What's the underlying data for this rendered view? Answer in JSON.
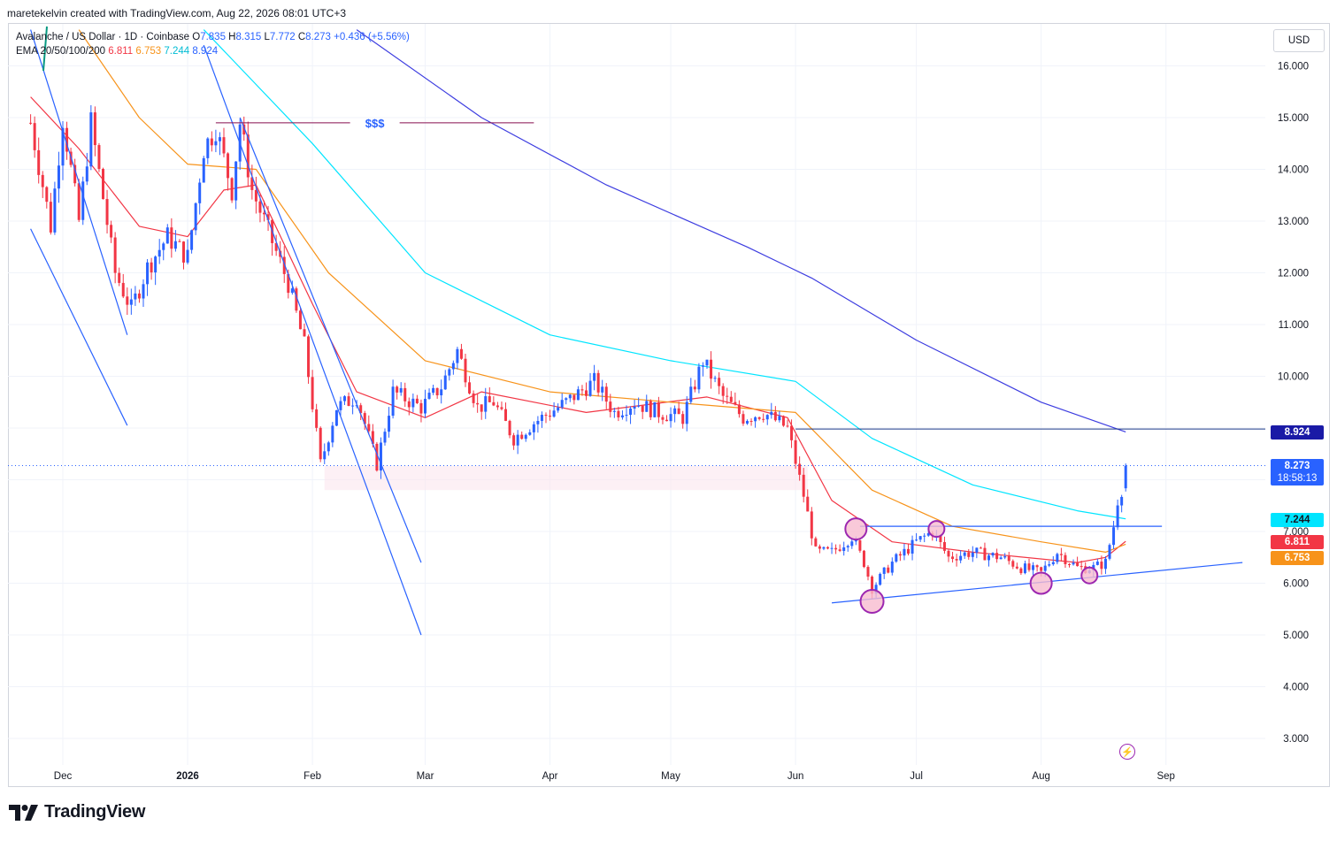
{
  "header": {
    "byline": "maretekelvin created with TradingView.com, Aug 22, 2026 08:01 UTC+3"
  },
  "legend": {
    "symbol": "Avalanche / US Dollar · 1D · Coinbase",
    "o_label": "O",
    "o": "7.835",
    "h_label": "H",
    "h": "8.315",
    "l_label": "L",
    "l": "7.772",
    "c_label": "C",
    "c": "8.273",
    "change": "+0.436 (+5.56%)",
    "ema_label": "EMA 20/50/100/200",
    "ema20": "6.811",
    "ema50": "6.753",
    "ema100": "7.244",
    "ema200": "8.924"
  },
  "currency": "USD",
  "price_tags": {
    "ema200": "8.924",
    "last": "8.273",
    "countdown": "18:58:13",
    "ema100": "7.244",
    "ema20": "6.811",
    "ema50": "6.753"
  },
  "annotation_text": "$$$",
  "footer": {
    "brand": "TradingView"
  },
  "colors": {
    "up": "#2962ff",
    "down": "#f23645",
    "ema20": "#f23645",
    "ema50": "#f7931a",
    "ema100": "#00e5ff",
    "ema200": "#3d3de0",
    "trendline": "#2962ff",
    "liquidity_line": "#880e4f",
    "circle_fill": "#f8bbd0",
    "circle_stroke": "#9c27b0"
  },
  "chart_data": {
    "type": "candlestick",
    "title": "Avalanche / US Dollar · 1D · Coinbase",
    "x_ticks": [
      "Dec",
      "2026",
      "Feb",
      "Mar",
      "Apr",
      "May",
      "Jun",
      "Jul",
      "Aug",
      "Sep"
    ],
    "y_ticks": [
      "3.000",
      "4.000",
      "5.000",
      "6.000",
      "7.000",
      "10.000",
      "11.000",
      "12.000",
      "13.000",
      "14.000",
      "15.000",
      "16.000"
    ],
    "y_range": [
      2.5,
      16.7
    ],
    "price_path": [
      [
        "2025-11-23",
        14.9
      ],
      [
        "2025-11-28",
        12.9
      ],
      [
        "2025-12-01",
        15.0
      ],
      [
        "2025-12-05",
        13.0
      ],
      [
        "2025-12-08",
        14.9
      ],
      [
        "2025-12-14",
        12.0
      ],
      [
        "2025-12-18",
        11.3
      ],
      [
        "2025-12-22",
        12.1
      ],
      [
        "2025-12-27",
        12.7
      ],
      [
        "2026-01-01",
        12.3
      ],
      [
        "2026-01-05",
        14.4
      ],
      [
        "2026-01-08",
        14.8
      ],
      [
        "2026-01-12",
        13.6
      ],
      [
        "2026-01-14",
        14.9
      ],
      [
        "2026-01-17",
        13.6
      ],
      [
        "2026-01-20",
        13.0
      ],
      [
        "2026-01-26",
        11.8
      ],
      [
        "2026-01-30",
        10.6
      ],
      [
        "2026-02-03",
        8.3
      ],
      [
        "2026-02-07",
        9.4
      ],
      [
        "2026-02-12",
        9.6
      ],
      [
        "2026-02-17",
        8.3
      ],
      [
        "2026-02-21",
        9.7
      ],
      [
        "2026-02-28",
        9.4
      ],
      [
        "2026-03-05",
        9.8
      ],
      [
        "2026-03-09",
        10.5
      ],
      [
        "2026-03-14",
        9.4
      ],
      [
        "2026-03-18",
        9.5
      ],
      [
        "2026-03-23",
        8.8
      ],
      [
        "2026-03-28",
        9.1
      ],
      [
        "2026-04-05",
        9.5
      ],
      [
        "2026-04-12",
        9.9
      ],
      [
        "2026-04-17",
        9.3
      ],
      [
        "2026-04-22",
        9.5
      ],
      [
        "2026-04-28",
        9.3
      ],
      [
        "2026-05-04",
        9.2
      ],
      [
        "2026-05-09",
        10.3
      ],
      [
        "2026-05-14",
        9.6
      ],
      [
        "2026-05-19",
        9.2
      ],
      [
        "2026-05-24",
        9.3
      ],
      [
        "2026-05-30",
        9.0
      ],
      [
        "2026-06-03",
        7.7
      ],
      [
        "2026-06-06",
        6.6
      ],
      [
        "2026-06-10",
        6.6
      ],
      [
        "2026-06-15",
        6.9
      ],
      [
        "2026-06-18",
        6.4
      ],
      [
        "2026-06-20",
        5.9
      ],
      [
        "2026-06-25",
        6.4
      ],
      [
        "2026-07-01",
        6.8
      ],
      [
        "2026-07-05",
        7.0
      ],
      [
        "2026-07-09",
        6.5
      ],
      [
        "2026-07-15",
        6.6
      ],
      [
        "2026-07-22",
        6.5
      ],
      [
        "2026-07-27",
        6.3
      ],
      [
        "2026-08-01",
        6.2
      ],
      [
        "2026-08-05",
        6.6
      ],
      [
        "2026-08-10",
        6.3
      ],
      [
        "2026-08-14",
        6.3
      ],
      [
        "2026-08-17",
        6.4
      ],
      [
        "2026-08-19",
        7.1
      ],
      [
        "2026-08-20",
        7.6
      ],
      [
        "2026-08-21",
        7.8
      ],
      [
        "2026-08-22",
        8.273
      ]
    ],
    "series": [
      {
        "name": "EMA 20",
        "values": [
          [
            "2025-11-23",
            15.4
          ],
          [
            "2025-12-05",
            14.4
          ],
          [
            "2025-12-20",
            12.9
          ],
          [
            "2026-01-01",
            12.7
          ],
          [
            "2026-01-10",
            13.6
          ],
          [
            "2026-01-18",
            13.7
          ],
          [
            "2026-02-01",
            11.4
          ],
          [
            "2026-02-12",
            9.7
          ],
          [
            "2026-03-01",
            9.2
          ],
          [
            "2026-03-15",
            9.7
          ],
          [
            "2026-04-10",
            9.3
          ],
          [
            "2026-05-10",
            9.6
          ],
          [
            "2026-05-30",
            9.2
          ],
          [
            "2026-06-10",
            7.6
          ],
          [
            "2026-06-25",
            6.8
          ],
          [
            "2026-07-15",
            6.6
          ],
          [
            "2026-08-10",
            6.4
          ],
          [
            "2026-08-17",
            6.5
          ],
          [
            "2026-08-22",
            6.811
          ]
        ]
      },
      {
        "name": "EMA 50",
        "values": [
          [
            "2025-12-05",
            16.7
          ],
          [
            "2025-12-20",
            15.0
          ],
          [
            "2026-01-01",
            14.1
          ],
          [
            "2026-01-18",
            14.0
          ],
          [
            "2026-02-05",
            12.0
          ],
          [
            "2026-03-01",
            10.3
          ],
          [
            "2026-04-01",
            9.7
          ],
          [
            "2026-05-01",
            9.5
          ],
          [
            "2026-06-01",
            9.3
          ],
          [
            "2026-06-20",
            7.8
          ],
          [
            "2026-07-10",
            7.1
          ],
          [
            "2026-08-01",
            6.8
          ],
          [
            "2026-08-17",
            6.6
          ],
          [
            "2026-08-22",
            6.753
          ]
        ]
      },
      {
        "name": "EMA 100",
        "values": [
          [
            "2026-01-05",
            16.7
          ],
          [
            "2026-02-01",
            14.5
          ],
          [
            "2026-03-01",
            12.0
          ],
          [
            "2026-04-01",
            10.8
          ],
          [
            "2026-05-01",
            10.3
          ],
          [
            "2026-06-01",
            9.9
          ],
          [
            "2026-06-20",
            8.8
          ],
          [
            "2026-07-15",
            7.9
          ],
          [
            "2026-08-10",
            7.4
          ],
          [
            "2026-08-22",
            7.244
          ]
        ]
      },
      {
        "name": "EMA 200",
        "values": [
          [
            "2026-02-12",
            16.7
          ],
          [
            "2026-03-15",
            15.0
          ],
          [
            "2026-04-15",
            13.7
          ],
          [
            "2026-05-20",
            12.5
          ],
          [
            "2026-06-05",
            11.9
          ],
          [
            "2026-07-01",
            10.7
          ],
          [
            "2026-08-01",
            9.5
          ],
          [
            "2026-08-22",
            8.924
          ]
        ]
      }
    ],
    "drawings": {
      "liquidity_line": {
        "from": "2026-01-08",
        "to": "2026-03-28",
        "price": 14.9,
        "label": "$$$"
      },
      "resistance_line": {
        "from": "2026-06-01",
        "to": "2026-09-30",
        "price": 8.98
      },
      "neckline": {
        "from": "2026-06-17",
        "to": "2026-08-31",
        "price": 7.1
      },
      "support_trendline": {
        "from": [
          "2026-06-10",
          5.62
        ],
        "to": [
          "2026-09-20",
          6.4
        ]
      },
      "demand_zone": {
        "from": "2026-02-04",
        "to": "2026-06-04",
        "low": 7.8,
        "high": 8.27
      },
      "channel_lines": [
        {
          "from": [
            "2025-11-23",
            12.85
          ],
          "to": [
            "2025-12-17",
            9.05
          ]
        },
        {
          "from": [
            "2025-11-23",
            16.7
          ],
          "to": [
            "2025-12-17",
            10.8
          ]
        },
        {
          "from": [
            "2026-01-05",
            16.4
          ],
          "to": [
            "2026-02-28",
            5.0
          ]
        },
        {
          "from": [
            "2026-01-14",
            15.0
          ],
          "to": [
            "2026-02-28",
            6.4
          ]
        }
      ],
      "circles": [
        {
          "date": "2026-06-16",
          "price": 7.05
        },
        {
          "date": "2026-06-20",
          "price": 5.65
        },
        {
          "date": "2026-07-06",
          "price": 7.05
        },
        {
          "date": "2026-08-01",
          "price": 6.0
        },
        {
          "date": "2026-08-13",
          "price": 6.15
        }
      ]
    }
  }
}
